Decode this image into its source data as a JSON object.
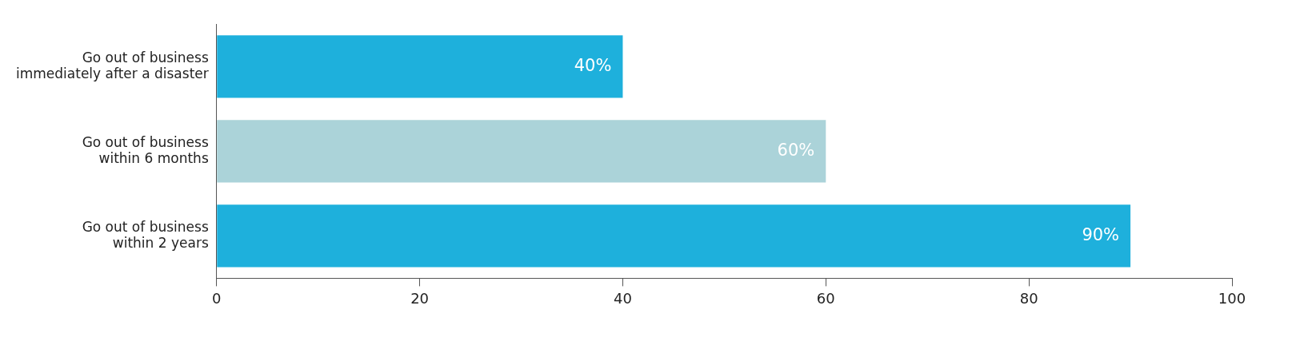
{
  "chart_data": {
    "type": "bar",
    "orientation": "horizontal",
    "categories": [
      "Go out of business\nimmediately after a disaster",
      "Go out of business\nwithin 6 months",
      "Go out of business\nwithin 2 years"
    ],
    "values": [
      40,
      60,
      90
    ],
    "colors": [
      "#1eb0dc",
      "#abd3d9",
      "#1eb0dc"
    ],
    "value_labels": [
      "40%",
      "60%",
      "90%"
    ],
    "xlim": [
      0,
      100
    ],
    "xticks": [
      0,
      20,
      40,
      60,
      80,
      100
    ],
    "grid": false,
    "legend": false
  }
}
